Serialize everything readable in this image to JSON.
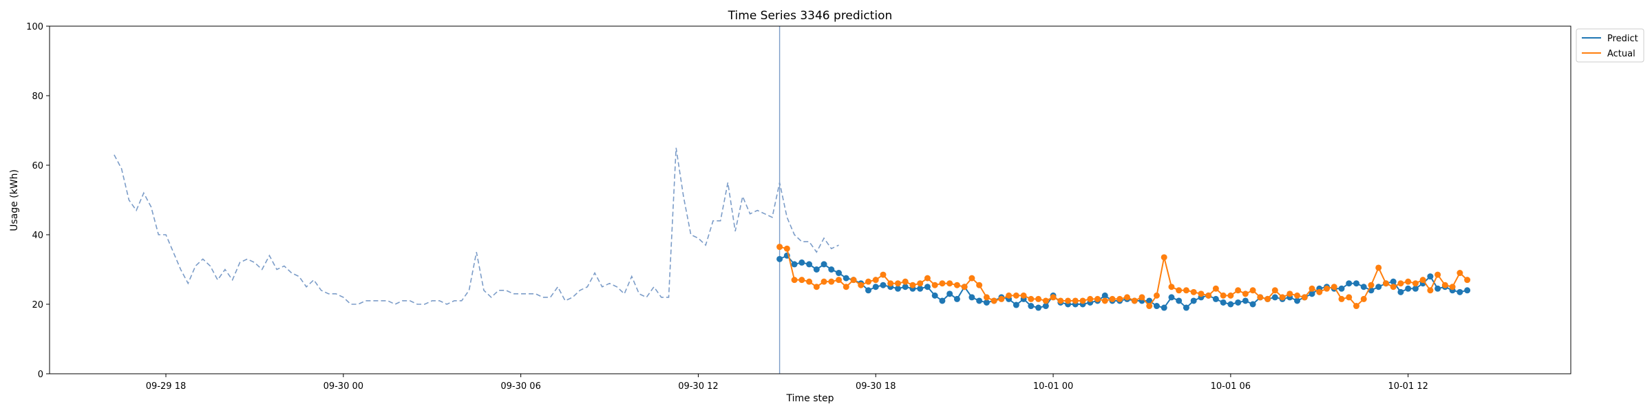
{
  "chart_data": {
    "type": "line",
    "title": "Time Series 3346 prediction",
    "xlabel": "Time step",
    "ylabel": "Usage (kWh)",
    "ylim": [
      0,
      100
    ],
    "yticks": [
      0,
      20,
      40,
      60,
      80,
      100
    ],
    "xlim": [
      "2023-09-29 14:04",
      "2023-10-01 17:30"
    ],
    "xticks": [
      "2023-09-29 18:00",
      "2023-09-30 00:00",
      "2023-09-30 06:00",
      "2023-09-30 12:00",
      "2023-09-30 18:00",
      "2023-10-01 00:00",
      "2023-10-01 06:00",
      "2023-10-01 12:00"
    ],
    "xtick_labels": [
      "09-29 18",
      "09-30 00",
      "09-30 06",
      "09-30 12",
      "09-30 18",
      "10-01 00",
      "10-01 06",
      "10-01 12"
    ],
    "grid": false,
    "legend": "upper-right-outside",
    "forecast_start": "2023-09-30 14:45",
    "step_minutes": 15,
    "colors": {
      "history": "#7b9cc8",
      "predict": "#1f77b4",
      "actual": "#ff7f0e",
      "divider": "#7b9cc8"
    },
    "history": {
      "start": "2023-09-29 16:15",
      "values": [
        63,
        59,
        50,
        47,
        52,
        48,
        40,
        40,
        35,
        30,
        26,
        31,
        33,
        31,
        27,
        30,
        27,
        32,
        33,
        32,
        30,
        34,
        30,
        31,
        29,
        28,
        25,
        27,
        24,
        23,
        23,
        22,
        20,
        20,
        21,
        21,
        21,
        21,
        20,
        21,
        21,
        20,
        20,
        21,
        21,
        20,
        21,
        21,
        24,
        35,
        24,
        22,
        24,
        24,
        23,
        23,
        23,
        23,
        22,
        22,
        25,
        21,
        22,
        24,
        25,
        29,
        25,
        26,
        25,
        23,
        28,
        23,
        22,
        25,
        22,
        22,
        65,
        51,
        40,
        39,
        37,
        44,
        44,
        55,
        41,
        51,
        46,
        47,
        46,
        45,
        55,
        45,
        40,
        38,
        38,
        35,
        39,
        36,
        37
      ]
    },
    "series": [
      {
        "name": "Predict",
        "start": "2023-09-30 14:45",
        "values": [
          33,
          34,
          31.5,
          32,
          31.5,
          30,
          31.5,
          30,
          29,
          27.5,
          27,
          26,
          24,
          25,
          25.5,
          25,
          24.5,
          25,
          24.5,
          24.5,
          25,
          22.5,
          21,
          23,
          21.5,
          25,
          22,
          21,
          20.5,
          21,
          22,
          21.5,
          19.8,
          21.5,
          19.5,
          19,
          19.5,
          22.5,
          20.5,
          20,
          20,
          20,
          20.5,
          21,
          22.5,
          21,
          21,
          21.5,
          21,
          21,
          21,
          19.5,
          19,
          22,
          21,
          19,
          21,
          22,
          22.5,
          21.5,
          20.5,
          20,
          20.5,
          21,
          20,
          22,
          21.5,
          22,
          21.5,
          22,
          21,
          22,
          23,
          24.5,
          25,
          24.5,
          24.5,
          26,
          26,
          25,
          24,
          25,
          26,
          26.5,
          23.5,
          24.5,
          24.5,
          26,
          28,
          24.5,
          25,
          24,
          23.5,
          24
        ]
      },
      {
        "name": "Actual",
        "start": "2023-09-30 14:45",
        "values": [
          36.5,
          36,
          27,
          27,
          26.5,
          25,
          26.5,
          26.5,
          27,
          25,
          27,
          25.5,
          26.5,
          27,
          28.5,
          26,
          26,
          26.5,
          25.5,
          26,
          27.5,
          25.5,
          26,
          26,
          25.5,
          25,
          27.5,
          25.5,
          22,
          21,
          21.5,
          22.5,
          22.5,
          22.5,
          21.5,
          21.5,
          21,
          22,
          21,
          21,
          21,
          21,
          21.5,
          21.5,
          21,
          21.5,
          21.5,
          22,
          21,
          22,
          19.5,
          22.5,
          33.5,
          25,
          24,
          24,
          23.5,
          23,
          22.5,
          24.5,
          22.5,
          22.5,
          24,
          23,
          24,
          22,
          21.5,
          24,
          22,
          23,
          22.5,
          22,
          24.5,
          23.5,
          24.5,
          25,
          21.5,
          22,
          19.5,
          21.5,
          25.5,
          30.5,
          26,
          25,
          26,
          26.5,
          26,
          27,
          24,
          28.5,
          25.5,
          25,
          29,
          27
        ]
      }
    ]
  }
}
